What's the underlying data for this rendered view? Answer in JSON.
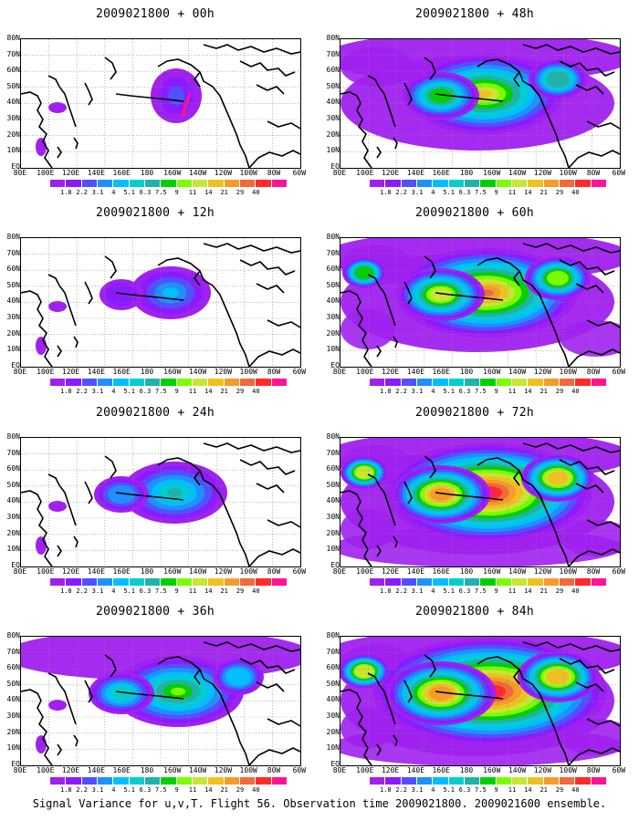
{
  "caption": "Signal Variance for u,v,T. Flight 56. Observation time 2009021800. 2009021600 ensemble.",
  "lat_labels": [
    "80N",
    "70N",
    "60N",
    "50N",
    "40N",
    "30N",
    "20N",
    "10N",
    "EQ"
  ],
  "lon_labels": [
    "80E",
    "100E",
    "120E",
    "140E",
    "160E",
    "180",
    "160W",
    "140W",
    "120W",
    "100W",
    "80W",
    "60W"
  ],
  "colorbar": {
    "levels": [
      "1.8",
      "2.2",
      "3.1",
      "4",
      "5.1",
      "6.3",
      "7.5",
      "9",
      "11",
      "14",
      "21",
      "29",
      "40"
    ],
    "colors": [
      "#a020f0",
      "#8c1aff",
      "#5050ff",
      "#1e90ff",
      "#00bfff",
      "#00ced1",
      "#20b2aa",
      "#00d000",
      "#7cfc00",
      "#c8e632",
      "#f0c020",
      "#f59b2a",
      "#f06a3a",
      "#ff2a2a",
      "#ff1493"
    ]
  },
  "panels": [
    {
      "title": "2009021800 + 00h",
      "intensity": 0
    },
    {
      "title": "2009021800 + 12h",
      "intensity": 1
    },
    {
      "title": "2009021800 + 24h",
      "intensity": 2
    },
    {
      "title": "2009021800 + 36h",
      "intensity": 3
    },
    {
      "title": "2009021800 + 48h",
      "intensity": 4
    },
    {
      "title": "2009021800 + 60h",
      "intensity": 5
    },
    {
      "title": "2009021800 + 72h",
      "intensity": 6
    },
    {
      "title": "2009021800 + 84h",
      "intensity": 7
    }
  ]
}
